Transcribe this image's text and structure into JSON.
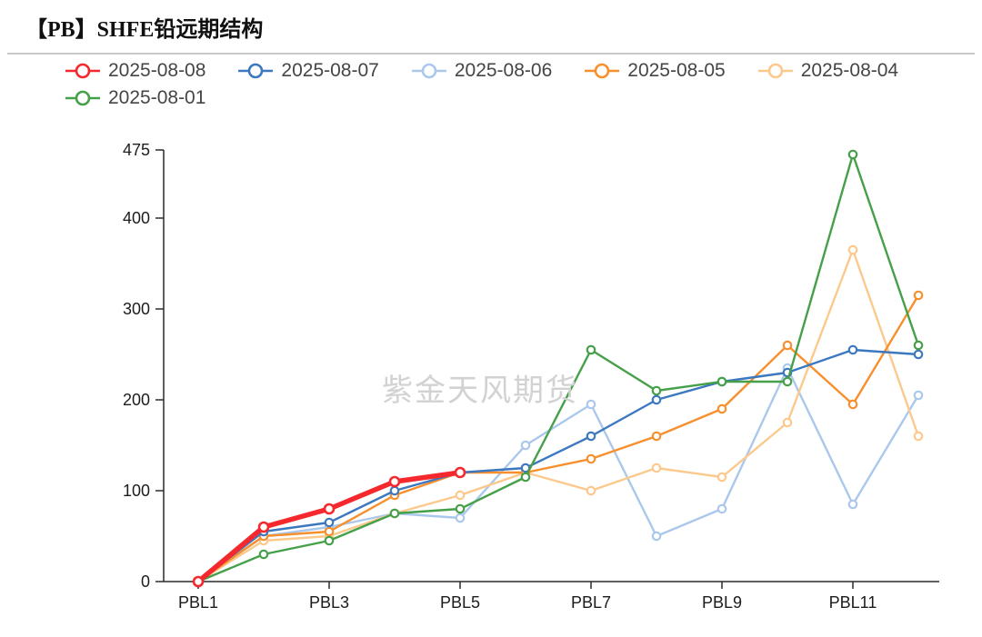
{
  "title": "【PB】SHFE铅远期结构",
  "watermark": "紫金天风期货",
  "chart_data": {
    "type": "line",
    "title": "【PB】SHFE铅远期结构",
    "categories": [
      "PBL1",
      "PBL2",
      "PBL3",
      "PBL4",
      "PBL5",
      "PBL6",
      "PBL7",
      "PBL8",
      "PBL9",
      "PBL10",
      "PBL11",
      "PBL12"
    ],
    "x_tick_labels": [
      "PBL1",
      "PBL3",
      "PBL5",
      "PBL7",
      "PBL9",
      "PBL11"
    ],
    "ylim": [
      0,
      475
    ],
    "y_ticks": [
      0,
      100,
      200,
      300,
      400,
      475
    ],
    "grid": false,
    "legend_position": "top",
    "marker": "open-circle",
    "series": [
      {
        "name": "2025-08-08",
        "color": "#f5282d",
        "emphasis": true,
        "values": [
          0,
          60,
          80,
          110,
          120,
          null,
          null,
          null,
          null,
          null,
          null,
          null
        ]
      },
      {
        "name": "2025-08-07",
        "color": "#3c78c0",
        "emphasis": false,
        "values": [
          0,
          55,
          65,
          100,
          120,
          125,
          160,
          200,
          220,
          230,
          255,
          250
        ]
      },
      {
        "name": "2025-08-06",
        "color": "#abc8ec",
        "emphasis": false,
        "values": [
          0,
          50,
          60,
          75,
          70,
          150,
          195,
          50,
          80,
          235,
          85,
          205
        ]
      },
      {
        "name": "2025-08-05",
        "color": "#f78f2d",
        "emphasis": false,
        "values": [
          0,
          50,
          55,
          95,
          120,
          120,
          135,
          160,
          190,
          260,
          195,
          315
        ]
      },
      {
        "name": "2025-08-04",
        "color": "#fcc98d",
        "emphasis": false,
        "values": [
          0,
          45,
          50,
          75,
          95,
          120,
          100,
          125,
          115,
          175,
          365,
          160
        ]
      },
      {
        "name": "2025-08-01",
        "color": "#45a049",
        "emphasis": false,
        "values": [
          0,
          30,
          45,
          75,
          80,
          115,
          255,
          210,
          220,
          220,
          470,
          260
        ]
      }
    ]
  }
}
